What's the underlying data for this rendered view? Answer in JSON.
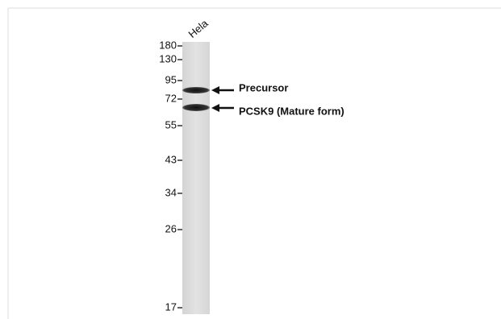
{
  "lanes": [
    "Hela"
  ],
  "markers": [
    "180",
    "130",
    "95",
    "72",
    "55",
    "43",
    "34",
    "26",
    "17"
  ],
  "bands": [
    {
      "label": "Precursor"
    },
    {
      "label": "PCSK9 (Mature form)"
    }
  ]
}
